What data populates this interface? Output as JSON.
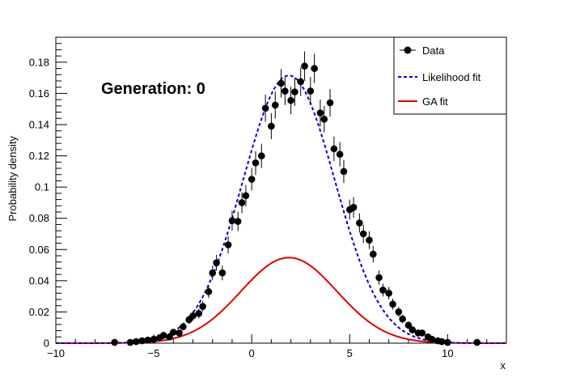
{
  "chart_data": {
    "type": "scatter",
    "xlabel": "x",
    "ylabel": "Probability density",
    "xlim": [
      -10,
      13
    ],
    "ylim": [
      0,
      0.196
    ],
    "xticks": [
      -10,
      -5,
      0,
      5,
      10
    ],
    "xtick_labels": [
      "−10",
      "−5",
      "0",
      "5",
      "10"
    ],
    "yticks": [
      0,
      0.02,
      0.04,
      0.06,
      0.08,
      0.1,
      0.12,
      0.14,
      0.16,
      0.18
    ],
    "ytick_labels": [
      "0",
      "0.02",
      "0.04",
      "0.06",
      "0.08",
      "0.1",
      "0.12",
      "0.14",
      "0.16",
      "0.18"
    ],
    "annotation": "Generation: 0",
    "legend": {
      "position": "top-right",
      "entries": [
        "Data",
        "Likelihood fit",
        "GA fit"
      ]
    },
    "grid": false,
    "colors": {
      "data": "#000000",
      "likelihood_fit": "#0000cc",
      "ga_fit": "#dd0000"
    },
    "series": [
      {
        "name": "Data",
        "style": "points-with-errors",
        "x": [
          -7.0,
          -6.2,
          -5.9,
          -5.6,
          -5.3,
          -5.0,
          -4.7,
          -4.5,
          -4.2,
          -4.0,
          -3.7,
          -3.5,
          -3.2,
          -3.0,
          -2.7,
          -2.5,
          -2.2,
          -2.0,
          -1.8,
          -1.5,
          -1.2,
          -1.0,
          -0.7,
          -0.5,
          -0.3,
          0.0,
          0.2,
          0.5,
          0.7,
          1.0,
          1.2,
          1.5,
          1.7,
          2.0,
          2.2,
          2.5,
          2.7,
          3.0,
          3.2,
          3.5,
          3.7,
          4.0,
          4.2,
          4.5,
          4.7,
          5.0,
          5.2,
          5.5,
          5.7,
          6.0,
          6.2,
          6.5,
          6.7,
          7.0,
          7.2,
          7.5,
          7.7,
          8.0,
          8.2,
          8.5,
          8.7,
          9.0,
          9.2,
          9.5,
          9.7,
          10.0,
          11.5
        ],
        "y": [
          0.0005,
          0.0005,
          0.001,
          0.0015,
          0.002,
          0.0025,
          0.0035,
          0.005,
          0.004,
          0.007,
          0.0065,
          0.0105,
          0.015,
          0.0175,
          0.019,
          0.0235,
          0.033,
          0.045,
          0.0515,
          0.045,
          0.063,
          0.0785,
          0.078,
          0.09,
          0.0945,
          0.105,
          0.1155,
          0.12,
          0.1505,
          0.139,
          0.1525,
          0.1665,
          0.1615,
          0.1555,
          0.161,
          0.1675,
          0.1775,
          0.1615,
          0.176,
          0.1475,
          0.1435,
          0.154,
          0.1245,
          0.121,
          0.11,
          0.0855,
          0.087,
          0.077,
          0.07,
          0.066,
          0.057,
          0.042,
          0.034,
          0.032,
          0.025,
          0.02,
          0.0155,
          0.0115,
          0.0085,
          0.0065,
          0.0065,
          0.004,
          0.0025,
          0.0015,
          0.001,
          0.0005,
          0.0005
        ],
        "yerr": [
          0.0005,
          0.0005,
          0.0007,
          0.0009,
          0.001,
          0.0011,
          0.0013,
          0.0016,
          0.0014,
          0.0019,
          0.0018,
          0.0023,
          0.0027,
          0.003,
          0.0031,
          0.0034,
          0.0041,
          0.0047,
          0.0051,
          0.0047,
          0.0056,
          0.0063,
          0.0062,
          0.0067,
          0.0069,
          0.0072,
          0.0076,
          0.0077,
          0.0087,
          0.0083,
          0.0087,
          0.0091,
          0.009,
          0.0088,
          0.009,
          0.0092,
          0.0094,
          0.009,
          0.0094,
          0.0086,
          0.0085,
          0.0088,
          0.0079,
          0.0078,
          0.0074,
          0.0065,
          0.0066,
          0.0062,
          0.0059,
          0.0057,
          0.0053,
          0.0046,
          0.0041,
          0.004,
          0.0035,
          0.0032,
          0.0028,
          0.0024,
          0.0021,
          0.0018,
          0.0018,
          0.0014,
          0.0011,
          0.0009,
          0.0007,
          0.0005,
          0.0005
        ]
      },
      {
        "name": "Likelihood fit",
        "style": "dashed-line",
        "model": "gaussian",
        "amplitude": 0.1715,
        "mean": 1.9,
        "sigma": 2.35,
        "x_range": [
          -10,
          13
        ]
      },
      {
        "name": "GA fit",
        "style": "solid-line",
        "model": "gaussian",
        "amplitude": 0.0548,
        "mean": 1.9,
        "sigma": 2.45,
        "x_range": [
          -10,
          13
        ]
      }
    ]
  }
}
